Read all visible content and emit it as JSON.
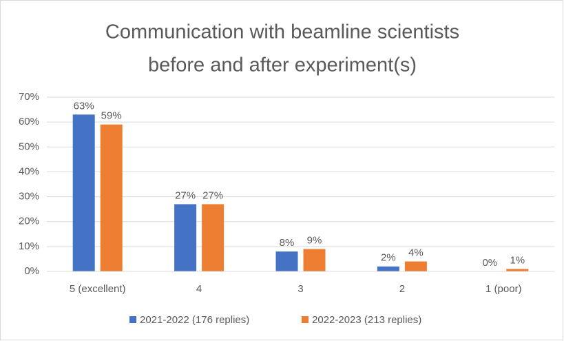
{
  "chart_data": {
    "type": "bar",
    "title": [
      "Communication with beamline scientists",
      "before and after experiment(s)"
    ],
    "categories": [
      "5 (excellent)",
      "4",
      "3",
      "2",
      "1 (poor)"
    ],
    "series": [
      {
        "name": "2021-2022 (176 replies)",
        "color": "#4472c4",
        "values": [
          63,
          27,
          8,
          2,
          0
        ],
        "value_labels": [
          "63%",
          "27%",
          "8%",
          "2%",
          "0%"
        ]
      },
      {
        "name": "2022-2023 (213 replies)",
        "color": "#ed7d31",
        "values": [
          59,
          27,
          9,
          4,
          1
        ],
        "value_labels": [
          "59%",
          "27%",
          "9%",
          "4%",
          "1%"
        ]
      }
    ],
    "ylim": [
      0,
      70
    ],
    "yticks": [
      {
        "value": 0,
        "label": "0%"
      },
      {
        "value": 10,
        "label": "10%"
      },
      {
        "value": 20,
        "label": "20%"
      },
      {
        "value": 30,
        "label": "30%"
      },
      {
        "value": 40,
        "label": "40%"
      },
      {
        "value": 50,
        "label": "50%"
      },
      {
        "value": 60,
        "label": "60%"
      },
      {
        "value": 70,
        "label": "70%"
      }
    ],
    "grid": true,
    "legend": "bottom"
  }
}
